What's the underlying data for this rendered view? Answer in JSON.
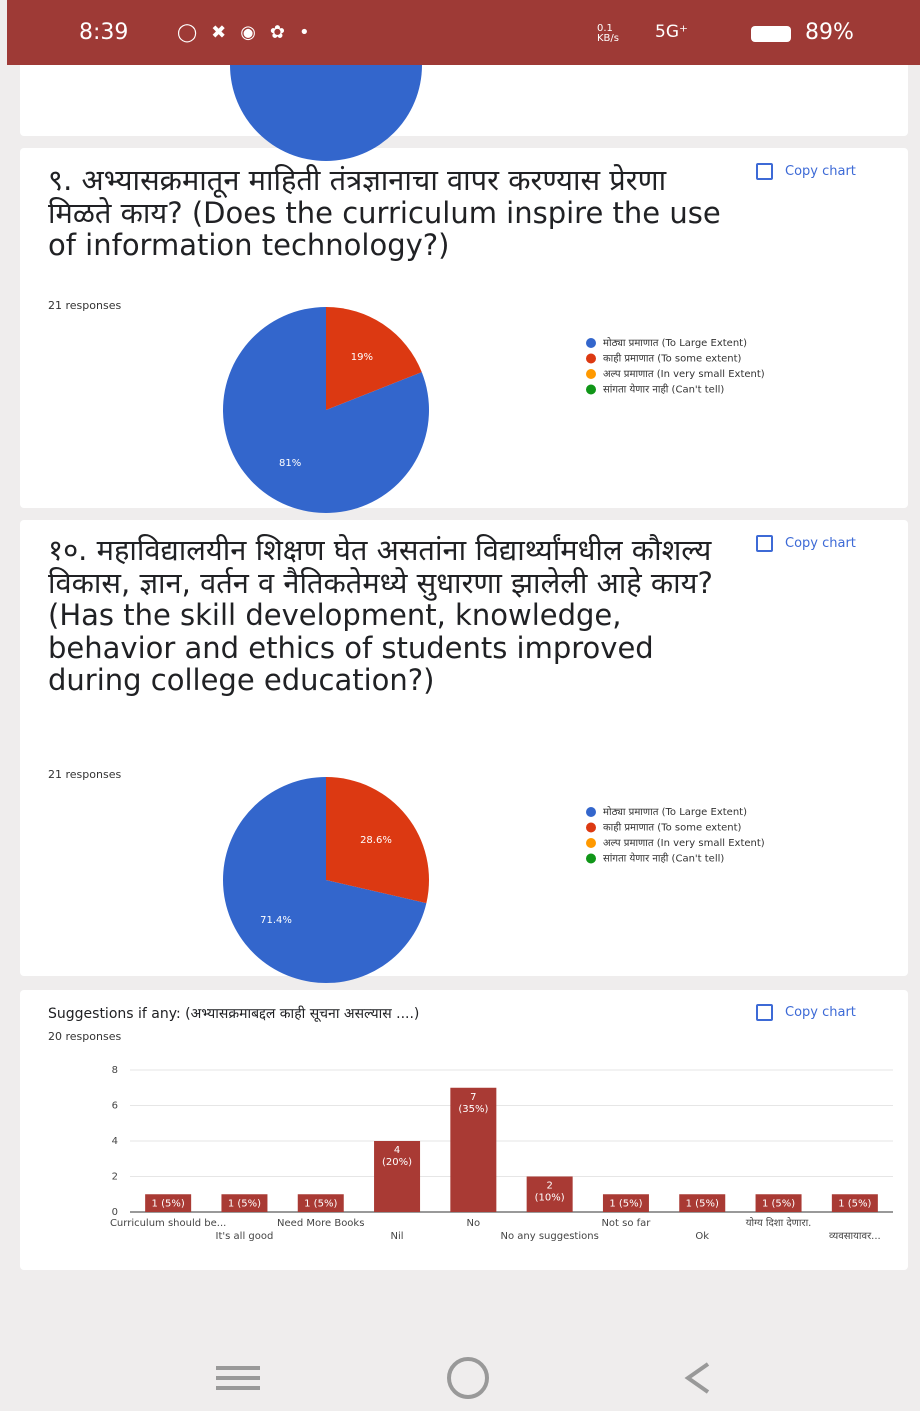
{
  "status_bar": {
    "time": "8:39",
    "speed": "0.1 KB/s",
    "network": "5G⁺",
    "battery": "89%"
  },
  "chart_data": [
    {
      "type": "pie",
      "title": "९. अभ्यासक्रमातून माहिती तंत्रज्ञानाचा वापर करण्यास प्रेरणा मिळते काय? (Does the curriculum inspire the use of information technology?)",
      "subtitle": "21 responses",
      "action": "Copy chart",
      "categories": [
        "मोठ्या प्रमाणात (To Large Extent)",
        "काही प्रमाणात (To some extent)",
        "अल्प प्रमाणात (In very small Extent)",
        "सांगता येणार नाही (Can't tell)"
      ],
      "values": [
        81,
        19,
        0,
        0
      ],
      "value_labels": [
        "81%",
        "19%",
        null,
        null
      ],
      "colors": [
        "#3366cc",
        "#dc3912",
        "#ff9900",
        "#109618"
      ]
    },
    {
      "type": "pie",
      "title": "१०. महाविद्यालयीन शिक्षण घेत असतांना विद्यार्थ्यांमधील कौशल्य विकास, ज्ञान, वर्तन व नैतिकतेमध्ये सुधारणा झालेली आहे काय? (Has the skill development, knowledge, behavior and ethics of students improved during college education?)",
      "subtitle": "21 responses",
      "action": "Copy chart",
      "categories": [
        "मोठ्या प्रमाणात (To Large Extent)",
        "काही प्रमाणात (To some extent)",
        "अल्प प्रमाणात (In very small Extent)",
        "सांगता येणार नाही (Can't tell)"
      ],
      "values": [
        71.4,
        28.6,
        0,
        0
      ],
      "value_labels": [
        "71.4%",
        "28.6%",
        null,
        null
      ],
      "colors": [
        "#3366cc",
        "#dc3912",
        "#ff9900",
        "#109618"
      ]
    },
    {
      "type": "bar",
      "title": "Suggestions if any: (अभ्यासक्रमाबद्दल काही सूचना असल्यास ....)",
      "subtitle": "20 responses",
      "action": "Copy chart",
      "categories": [
        "Curriculum should be...",
        "It's all good",
        "Need More Books",
        "Nil",
        "No",
        "No any suggestions",
        "Not so far",
        "Ok",
        "योग्य दिशा देणारा.",
        "व्यवसायावर..."
      ],
      "values": [
        1,
        1,
        1,
        4,
        7,
        2,
        1,
        1,
        1,
        1
      ],
      "value_labels": [
        "1 (5%)",
        "1 (5%)",
        "1 (5%)",
        "4 (20%)",
        "7 (35%)",
        "2 (10%)",
        "1 (5%)",
        "1 (5%)",
        "1 (5%)",
        "1 (5%)"
      ],
      "color": "#a93a34",
      "ylim": [
        0,
        8
      ],
      "yticks": [
        0,
        2,
        4,
        6,
        8
      ],
      "grid": true
    }
  ]
}
